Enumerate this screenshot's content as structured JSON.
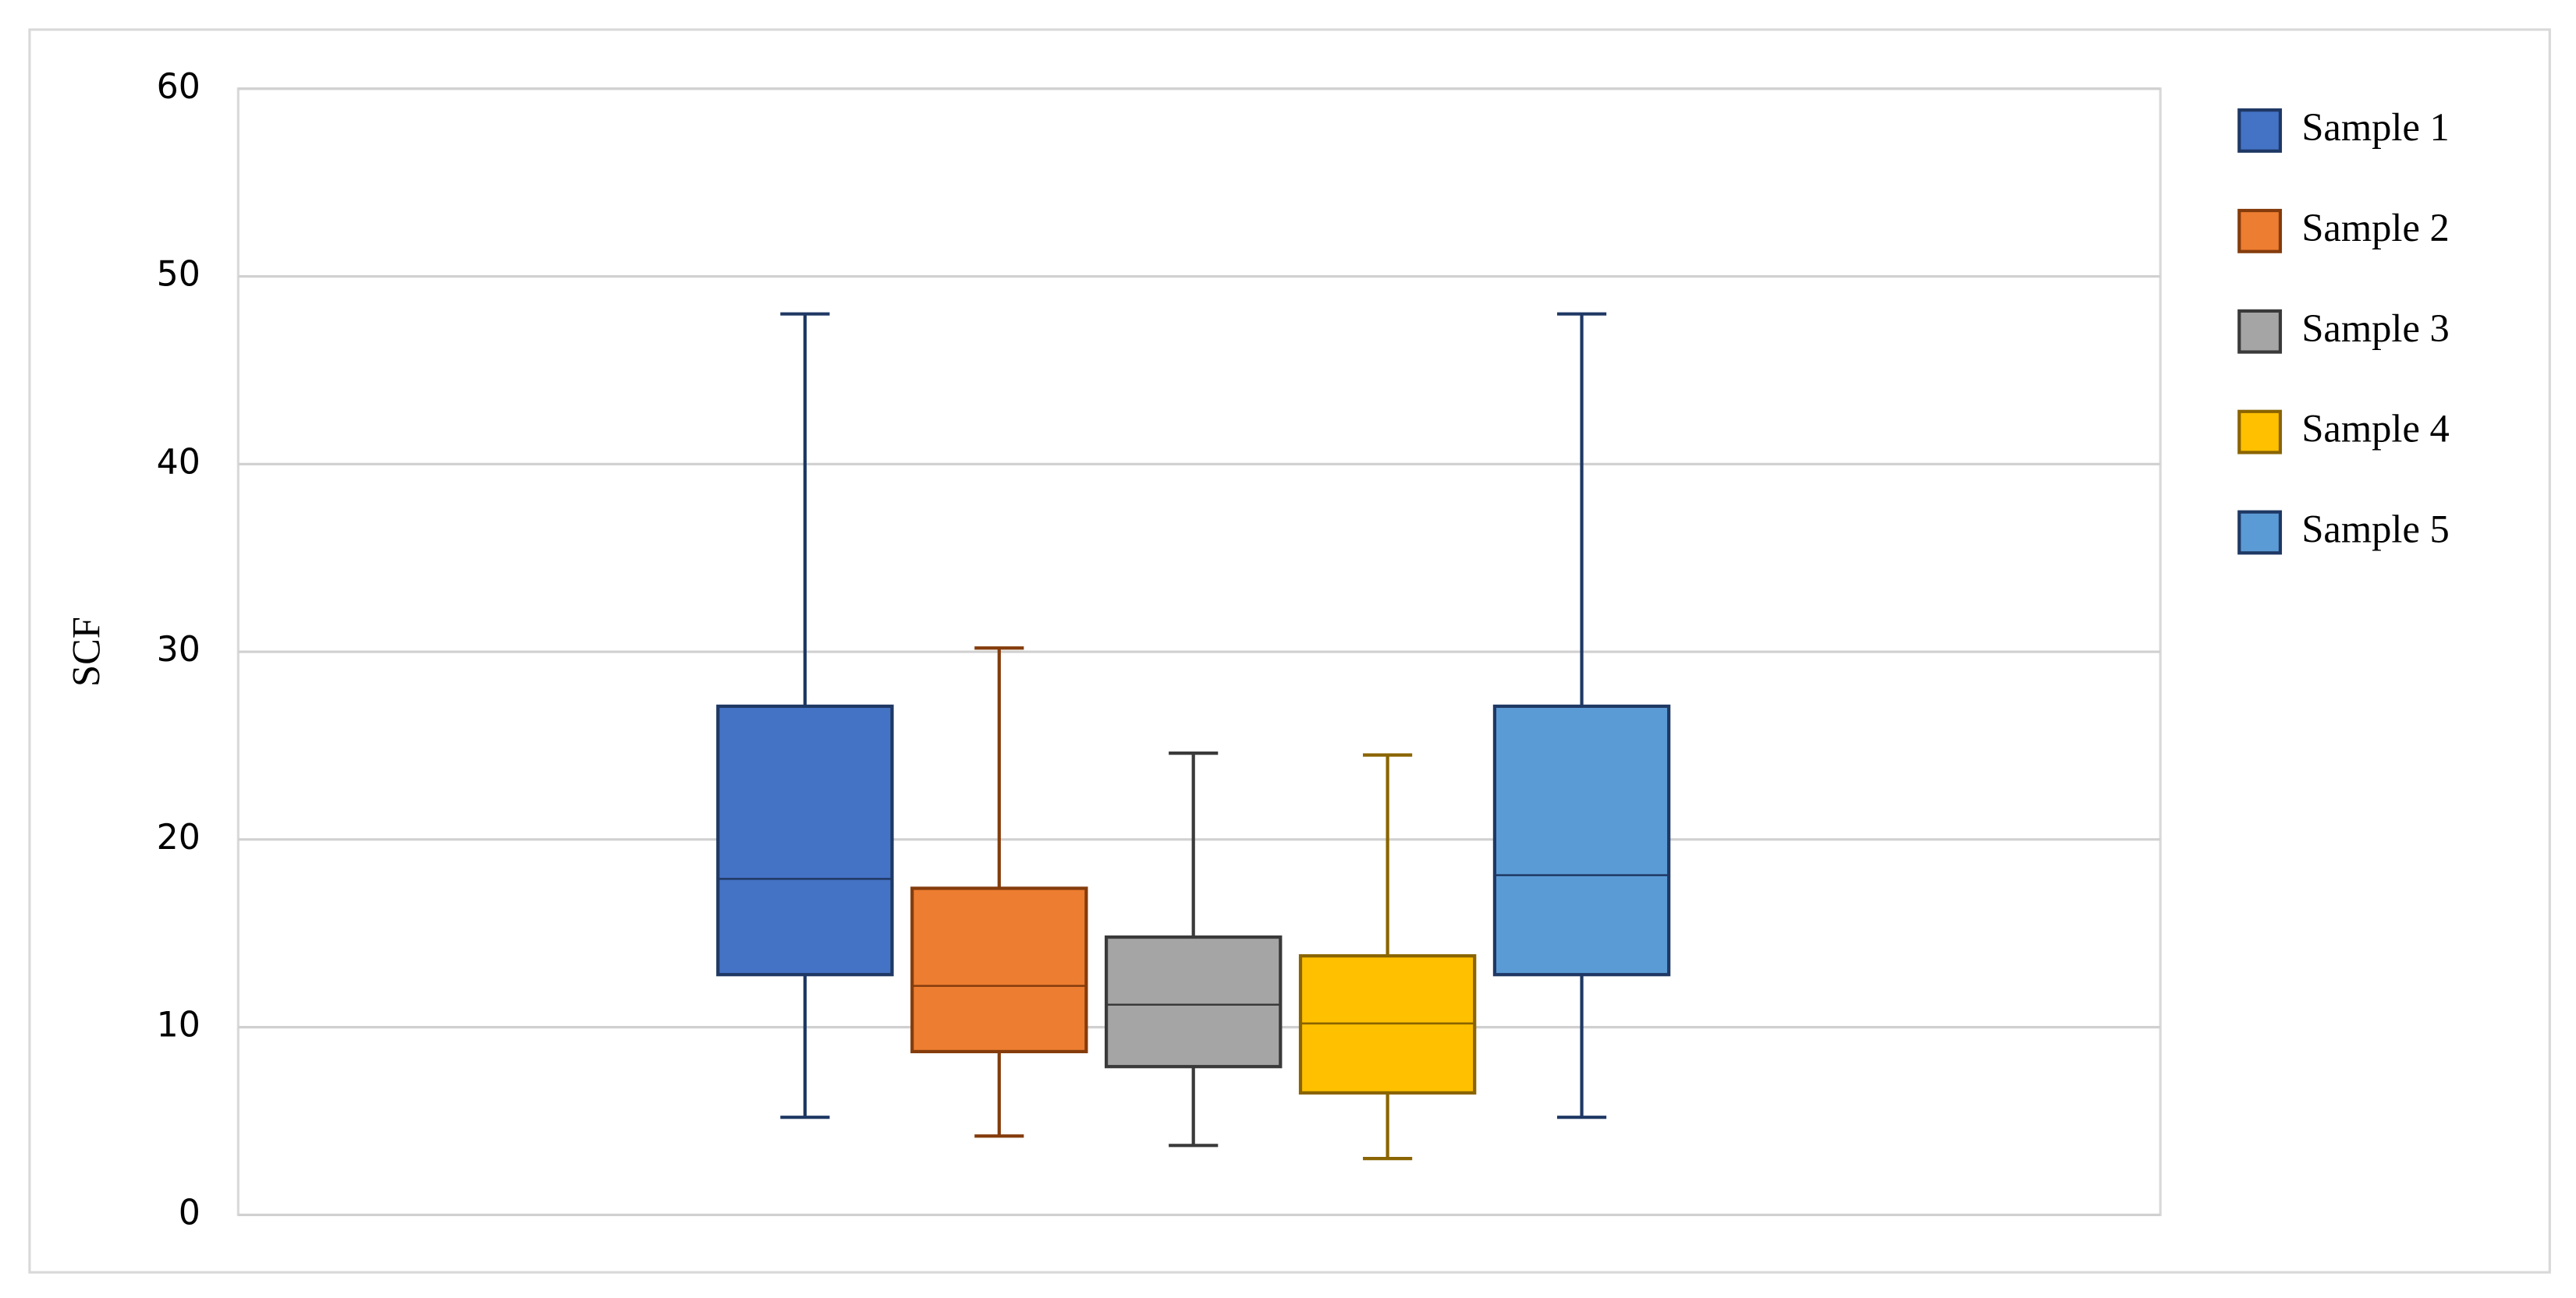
{
  "chart_data": {
    "type": "box",
    "ylabel": "SCF",
    "ylim": [
      0,
      60
    ],
    "yticks": [
      0,
      10,
      20,
      30,
      40,
      50,
      60
    ],
    "grid": true,
    "legend": "right",
    "series": [
      {
        "name": "Sample 1",
        "color": "#4472c4",
        "edge": "#1f3864",
        "min": 5.2,
        "q1": 12.8,
        "median": 17.9,
        "q3": 27.1,
        "max": 48
      },
      {
        "name": "Sample 2",
        "color": "#ed7d31",
        "edge": "#843c0c",
        "min": 4.2,
        "q1": 8.7,
        "median": 12.2,
        "q3": 17.4,
        "max": 30.2
      },
      {
        "name": "Sample 3",
        "color": "#a5a5a5",
        "edge": "#3a3a3a",
        "min": 3.7,
        "q1": 7.9,
        "median": 11.2,
        "q3": 14.8,
        "max": 24.6
      },
      {
        "name": "Sample 4",
        "color": "#ffc000",
        "edge": "#8a6400",
        "min": 3.0,
        "q1": 6.5,
        "median": 10.2,
        "q3": 13.8,
        "max": 24.5
      },
      {
        "name": "Sample 5",
        "color": "#5b9bd5",
        "edge": "#1f3864",
        "min": 5.2,
        "q1": 12.8,
        "median": 18.1,
        "q3": 27.1,
        "max": 48
      }
    ]
  }
}
